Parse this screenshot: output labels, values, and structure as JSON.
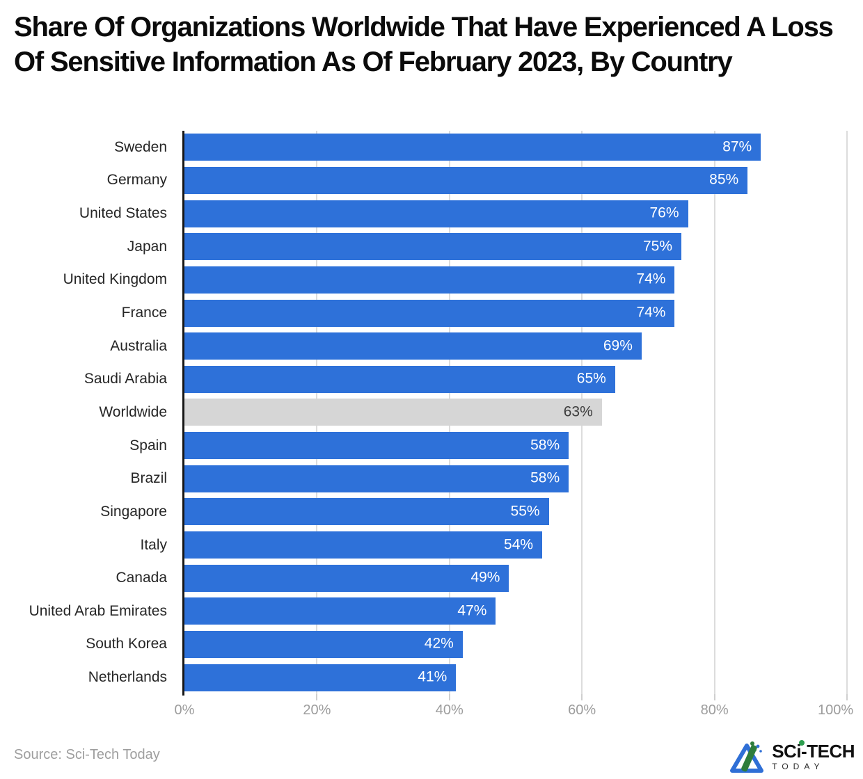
{
  "title": "Share Of Organizations Worldwide That Have Experienced A Loss Of Sensitive Information As Of February 2023, By Country",
  "source": "Source: Sci-Tech Today",
  "logo": {
    "wordmark": "SCi-TECH",
    "tagline": "TODAY",
    "icon": "sci-tech-today-logo-icon",
    "blue": "#2f6fd6",
    "green": "#2e7d3c"
  },
  "chart_data": {
    "type": "bar",
    "orientation": "horizontal",
    "title": "Share Of Organizations Worldwide That Have Experienced A Loss Of Sensitive Information As Of February 2023, By Country",
    "categories": [
      "Sweden",
      "Germany",
      "United States",
      "Japan",
      "United Kingdom",
      "France",
      "Australia",
      "Saudi Arabia",
      "Worldwide",
      "Spain",
      "Brazil",
      "Singapore",
      "Italy",
      "Canada",
      "United Arab Emirates",
      "South Korea",
      "Netherlands"
    ],
    "values": [
      87,
      85,
      76,
      75,
      74,
      74,
      69,
      65,
      63,
      58,
      58,
      55,
      54,
      49,
      47,
      42,
      41
    ],
    "value_labels": [
      "87%",
      "85%",
      "76%",
      "75%",
      "74%",
      "74%",
      "69%",
      "65%",
      "63%",
      "58%",
      "58%",
      "55%",
      "54%",
      "49%",
      "47%",
      "42%",
      "41%"
    ],
    "highlight_index": 8,
    "highlight_category": "Worldwide",
    "xlabel": "",
    "ylabel": "",
    "xlim": [
      0,
      100
    ],
    "x_tick_values": [
      0,
      20,
      40,
      60,
      80,
      100
    ],
    "x_tick_labels": [
      "0%",
      "20%",
      "40%",
      "60%",
      "80%",
      "100%"
    ],
    "grid": true,
    "legend": "none",
    "colors": {
      "bar": "#2e71d9",
      "highlight_bar": "#d6d6d6",
      "value_label": "#ffffff",
      "highlight_value_label": "#3d3d3d",
      "category_label": "#262626",
      "axis_line": "#171717",
      "gridline": "#dcdcdc",
      "tick_label": "#9c9c9c"
    }
  }
}
